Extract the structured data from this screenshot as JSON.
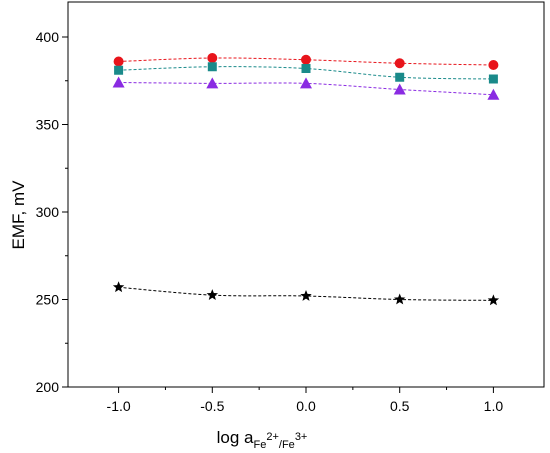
{
  "chart_data": {
    "type": "scatter",
    "xlabel_main": "log a",
    "xlabel_sub": "Fe",
    "xlabel_sup1": "2+",
    "xlabel_slash": "/Fe",
    "xlabel_sup2": "3+",
    "ylabel": "EMF, mV",
    "xlim": [
      -1.27,
      1.27
    ],
    "ylim": [
      200,
      420
    ],
    "xticks": [
      -1.0,
      -0.5,
      0.0,
      0.5,
      1.0
    ],
    "xtick_labels": [
      "-1.0",
      "-0.5",
      "0.0",
      "0.5",
      "1.0"
    ],
    "yticks": [
      200,
      250,
      300,
      350,
      400
    ],
    "ytick_labels": [
      "200",
      "250",
      "300",
      "350",
      "400"
    ],
    "grid": false,
    "x": [
      -1.0,
      -0.5,
      0.0,
      0.5,
      1.0
    ],
    "series": [
      {
        "marker": "circle",
        "color": "#e8141b",
        "values": [
          386,
          388,
          387,
          385,
          384
        ]
      },
      {
        "marker": "square",
        "color": "#1a8a8a",
        "values": [
          381,
          383,
          382,
          377,
          376
        ]
      },
      {
        "marker": "triangle",
        "color": "#8a2be2",
        "values": [
          374,
          373.5,
          373.5,
          370,
          367
        ]
      },
      {
        "marker": "star",
        "color": "#000000",
        "values": [
          257,
          252.5,
          252,
          250,
          249.5
        ]
      }
    ]
  }
}
